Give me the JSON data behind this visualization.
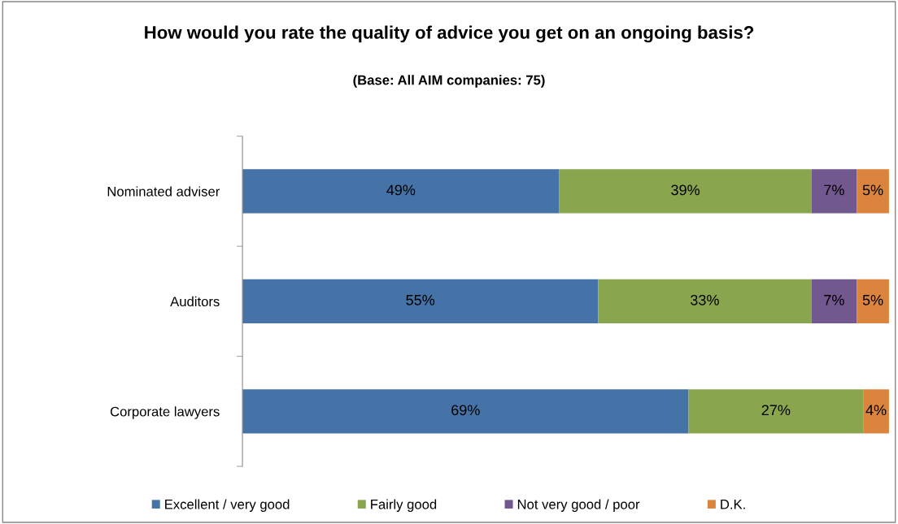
{
  "chart_data": {
    "type": "bar",
    "orientation": "horizontal",
    "stacked": true,
    "title": "How would you rate the quality of advice you get on an ongoing basis?",
    "subtitle": "(Base: All AIM companies: 75)",
    "categories": [
      "Nominated adviser",
      "Auditors",
      "Corporate lawyers"
    ],
    "series": [
      {
        "name": "Excellent / very good",
        "color": "#4572a7",
        "values": [
          49,
          55,
          69
        ],
        "value_labels": [
          "49%",
          "55%",
          "69%"
        ]
      },
      {
        "name": "Fairly good",
        "color": "#89a54e",
        "values": [
          39,
          33,
          27
        ],
        "value_labels": [
          "39%",
          "33%",
          "27%"
        ]
      },
      {
        "name": "Not very good / poor",
        "color": "#71588f",
        "values": [
          7,
          7,
          null
        ],
        "value_labels": [
          "7%",
          "7%",
          null
        ]
      },
      {
        "name": "D.K.",
        "color": "#db843d",
        "values": [
          5,
          5,
          4
        ],
        "value_labels": [
          "5%",
          "5%",
          "4%"
        ]
      }
    ],
    "legend": "bottom",
    "grid": false
  }
}
